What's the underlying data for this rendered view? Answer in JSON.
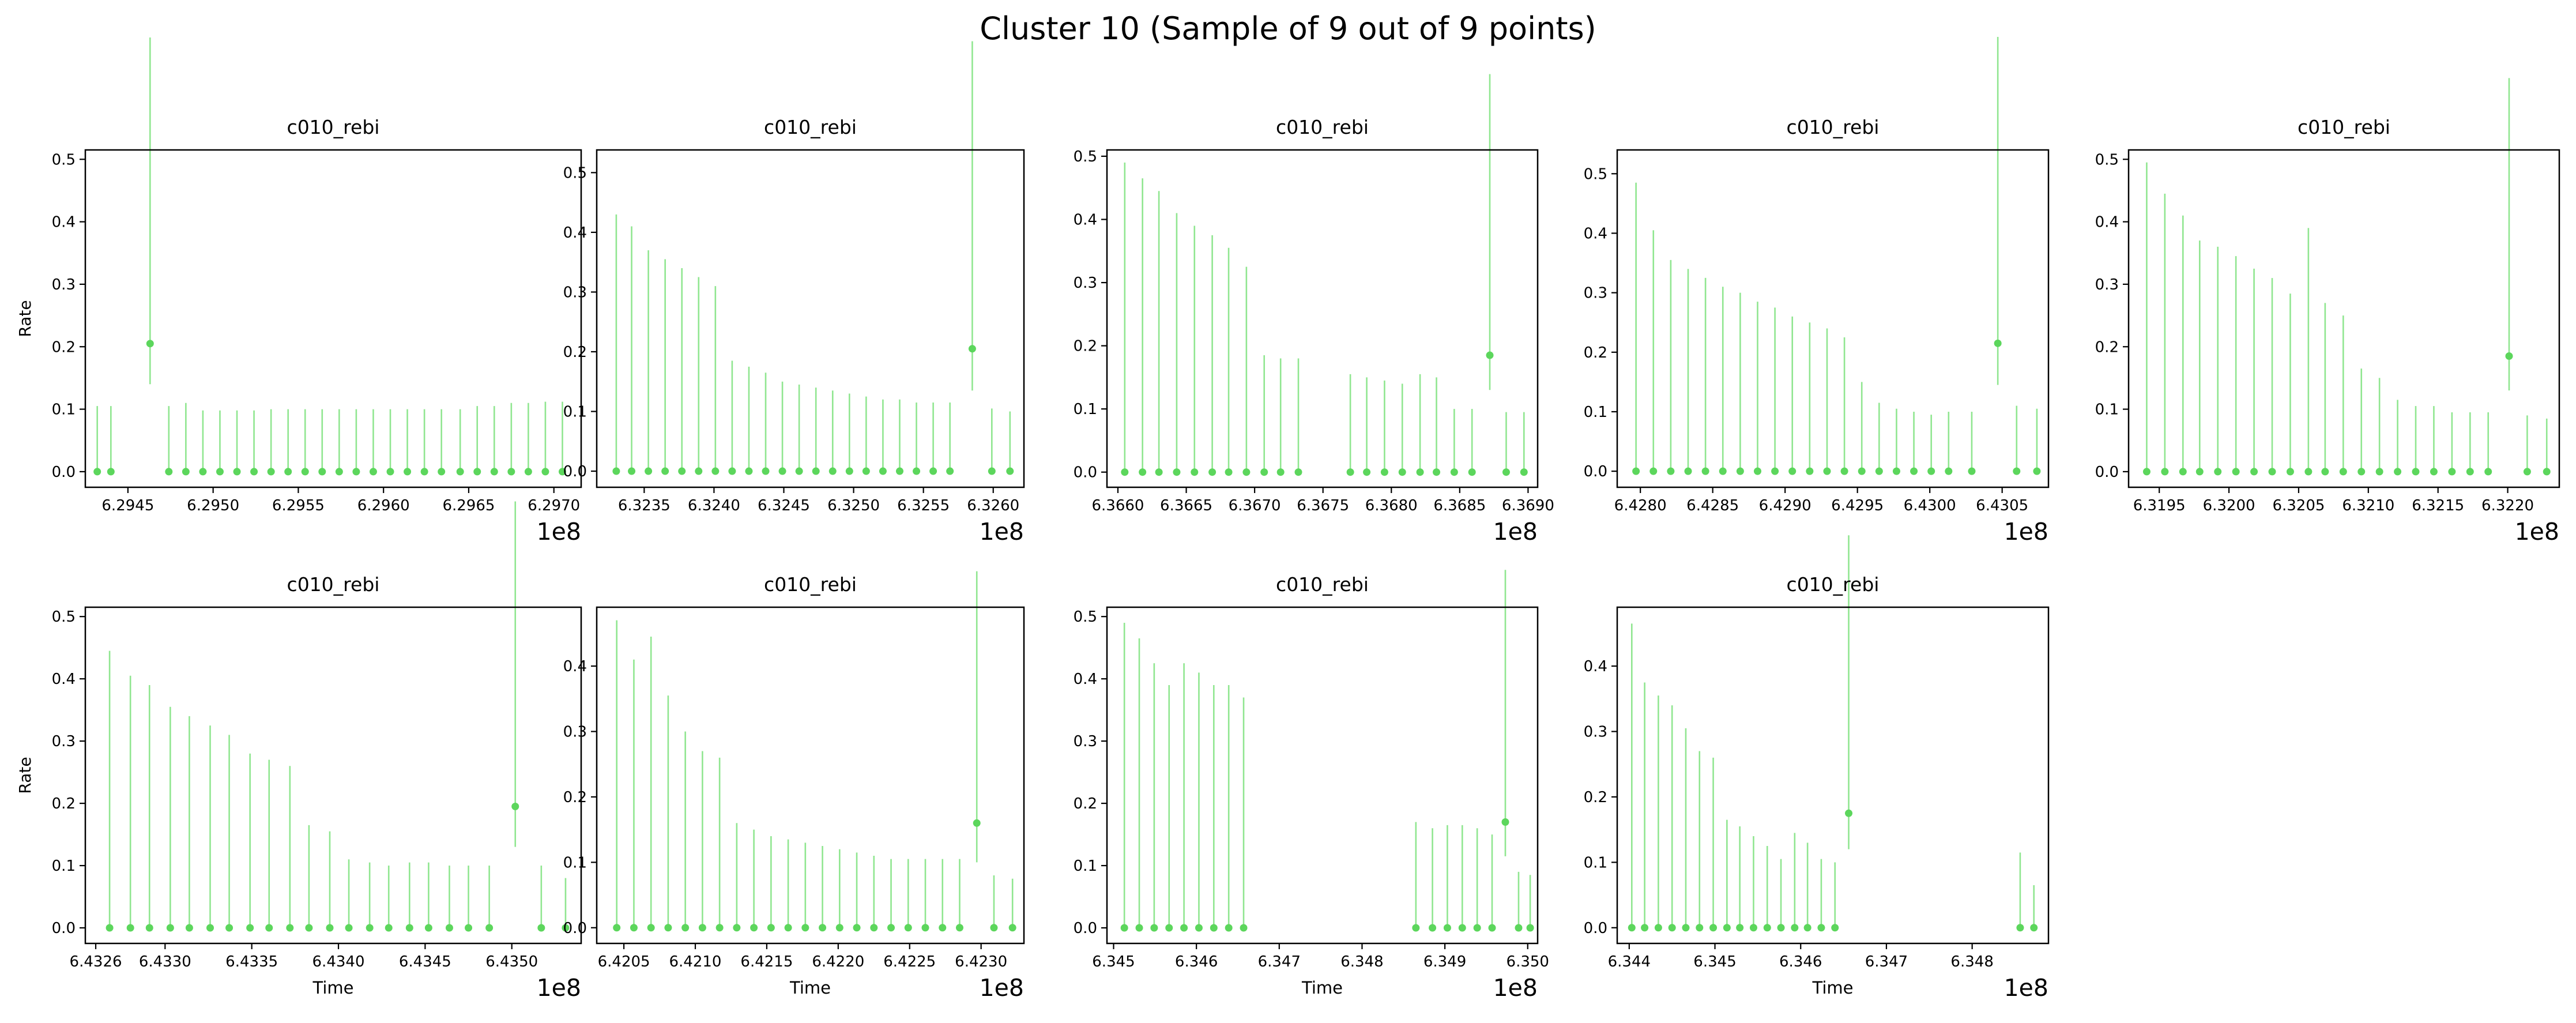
{
  "figure": {
    "title": "Cluster 10 (Sample of 9 out of 9 points)",
    "point_color": "#5cd65c",
    "errorbar_color": "#90e690"
  },
  "chart_data": [
    {
      "type": "scatter",
      "title": "c010_rebi",
      "xlabel": "",
      "ylabel": "Rate",
      "offset_text": "1e8",
      "xticks": [
        "6.2945",
        "6.2950",
        "6.2955",
        "6.2960",
        "6.2965",
        "6.2970"
      ],
      "xtick_values": [
        6.2945,
        6.295,
        6.2955,
        6.296,
        6.2965,
        6.297
      ],
      "xlim": [
        6.29425,
        6.29716
      ],
      "yticks": [
        "0.0",
        "0.1",
        "0.2",
        "0.3",
        "0.4",
        "0.5"
      ],
      "ytick_values": [
        0,
        0.1,
        0.2,
        0.3,
        0.4,
        0.5
      ],
      "ylim": [
        -0.025,
        0.515
      ],
      "x": [
        6.29432,
        6.2944,
        6.29463,
        6.29474,
        6.29484,
        6.29494,
        6.29504,
        6.29514,
        6.29524,
        6.29534,
        6.29544,
        6.29554,
        6.29564,
        6.29574,
        6.29584,
        6.29594,
        6.29604,
        6.29614,
        6.29624,
        6.29634,
        6.29645,
        6.29655,
        6.29665,
        6.29675,
        6.29685,
        6.29695,
        6.29705
      ],
      "y": [
        0,
        0,
        0.205,
        0,
        0,
        0,
        0,
        0,
        0,
        0,
        0,
        0,
        0,
        0,
        0,
        0,
        0,
        0,
        0,
        0,
        0,
        0,
        0,
        0,
        0,
        0,
        0
      ],
      "yerr_low": [
        0,
        0,
        0.065,
        0,
        0,
        0,
        0,
        0,
        0,
        0,
        0,
        0,
        0,
        0,
        0,
        0,
        0,
        0,
        0,
        0,
        0,
        0,
        0,
        0,
        0,
        0,
        0
      ],
      "yerr_high": [
        0.105,
        0.105,
        0.49,
        0.105,
        0.11,
        0.098,
        0.098,
        0.098,
        0.098,
        0.1,
        0.1,
        0.1,
        0.1,
        0.1,
        0.1,
        0.1,
        0.1,
        0.1,
        0.1,
        0.1,
        0.1,
        0.105,
        0.105,
        0.11,
        0.11,
        0.112,
        0.112
      ]
    },
    {
      "type": "scatter",
      "title": "c010_rebi",
      "xlabel": "",
      "ylabel": "",
      "offset_text": "1e8",
      "xticks": [
        "6.3235",
        "6.3240",
        "6.3245",
        "6.3250",
        "6.3255",
        "6.3260"
      ],
      "xtick_values": [
        6.3235,
        6.324,
        6.3245,
        6.325,
        6.3255,
        6.326
      ],
      "xlim": [
        6.32316,
        6.32622
      ],
      "yticks": [
        "0.0",
        "0.1",
        "0.2",
        "0.3",
        "0.4",
        "0.5"
      ],
      "ytick_values": [
        0,
        0.1,
        0.2,
        0.3,
        0.4,
        0.5
      ],
      "ylim": [
        -0.027,
        0.538
      ],
      "x": [
        6.3233,
        6.32341,
        6.32353,
        6.32365,
        6.32377,
        6.32389,
        6.32401,
        6.32413,
        6.32425,
        6.32437,
        6.32449,
        6.32461,
        6.32473,
        6.32485,
        6.32497,
        6.32509,
        6.32521,
        6.32533,
        6.32545,
        6.32557,
        6.32569,
        6.32585,
        6.32599,
        6.32612
      ],
      "y": [
        0,
        0,
        0,
        0,
        0,
        0,
        0,
        0,
        0,
        0,
        0,
        0,
        0,
        0,
        0,
        0,
        0,
        0,
        0,
        0,
        0,
        0.205,
        0,
        0
      ],
      "yerr_low": [
        0,
        0,
        0,
        0,
        0,
        0,
        0,
        0,
        0,
        0,
        0,
        0,
        0,
        0,
        0,
        0,
        0,
        0,
        0,
        0,
        0,
        0.07,
        0,
        0
      ],
      "yerr_high": [
        0.43,
        0.41,
        0.37,
        0.355,
        0.34,
        0.325,
        0.31,
        0.185,
        0.175,
        0.165,
        0.15,
        0.145,
        0.14,
        0.135,
        0.13,
        0.125,
        0.12,
        0.12,
        0.115,
        0.115,
        0.115,
        0.515,
        0.105,
        0.1
      ]
    },
    {
      "type": "scatter",
      "title": "c010_rebi",
      "xlabel": "",
      "ylabel": "",
      "offset_text": "1e8",
      "xticks": [
        "6.3660",
        "6.3665",
        "6.3670",
        "6.3675",
        "6.3680",
        "6.3685",
        "6.3690"
      ],
      "xtick_values": [
        6.366,
        6.3665,
        6.367,
        6.3675,
        6.368,
        6.3685,
        6.369
      ],
      "xlim": [
        6.36592,
        6.36907
      ],
      "yticks": [
        "0.0",
        "0.1",
        "0.2",
        "0.3",
        "0.4",
        "0.5"
      ],
      "ytick_values": [
        0,
        0.1,
        0.2,
        0.3,
        0.4,
        0.5
      ],
      "ylim": [
        -0.024,
        0.51
      ],
      "x": [
        6.36605,
        6.36618,
        6.3663,
        6.36643,
        6.36656,
        6.36669,
        6.36681,
        6.36694,
        6.36707,
        6.36719,
        6.36732,
        6.3677,
        6.36782,
        6.36795,
        6.36808,
        6.36821,
        6.36833,
        6.36846,
        6.36859,
        6.36872,
        6.36884,
        6.36897
      ],
      "y": [
        0,
        0,
        0,
        0,
        0,
        0,
        0,
        0,
        0,
        0,
        0,
        0,
        0,
        0,
        0,
        0,
        0,
        0,
        0,
        0.185,
        0,
        0
      ],
      "yerr_low": [
        0,
        0,
        0,
        0,
        0,
        0,
        0,
        0,
        0,
        0,
        0,
        0,
        0,
        0,
        0,
        0,
        0,
        0,
        0,
        0.055,
        0,
        0
      ],
      "yerr_high": [
        0.49,
        0.465,
        0.445,
        0.41,
        0.39,
        0.375,
        0.355,
        0.325,
        0.185,
        0.18,
        0.18,
        0.155,
        0.15,
        0.145,
        0.14,
        0.155,
        0.15,
        0.1,
        0.1,
        0.445,
        0.095,
        0.095
      ]
    },
    {
      "type": "scatter",
      "title": "c010_rebi",
      "xlabel": "",
      "ylabel": "",
      "offset_text": "1e8",
      "xticks": [
        "6.4280",
        "6.4285",
        "6.4290",
        "6.4295",
        "6.4300",
        "6.4305"
      ],
      "xtick_values": [
        6.428,
        6.4285,
        6.429,
        6.4295,
        6.43,
        6.4305
      ],
      "xlim": [
        6.42784,
        6.43082
      ],
      "yticks": [
        "0.0",
        "0.1",
        "0.2",
        "0.3",
        "0.4",
        "0.5"
      ],
      "ytick_values": [
        0,
        0.1,
        0.2,
        0.3,
        0.4,
        0.5
      ],
      "ylim": [
        -0.027,
        0.54
      ],
      "x": [
        6.42797,
        6.42809,
        6.42821,
        6.42833,
        6.42845,
        6.42857,
        6.42869,
        6.42881,
        6.42893,
        6.42905,
        6.42917,
        6.42929,
        6.42941,
        6.42953,
        6.42965,
        6.42977,
        6.42989,
        6.43001,
        6.43013,
        6.43029,
        6.43047,
        6.4306,
        6.43074
      ],
      "y": [
        0,
        0,
        0,
        0,
        0,
        0,
        0,
        0,
        0,
        0,
        0,
        0,
        0,
        0,
        0,
        0,
        0,
        0,
        0,
        0,
        0.215,
        0,
        0
      ],
      "yerr_low": [
        0,
        0,
        0,
        0,
        0,
        0,
        0,
        0,
        0,
        0,
        0,
        0,
        0,
        0,
        0,
        0,
        0,
        0,
        0,
        0,
        0.07,
        0,
        0
      ],
      "yerr_high": [
        0.485,
        0.405,
        0.355,
        0.34,
        0.325,
        0.31,
        0.3,
        0.285,
        0.275,
        0.26,
        0.25,
        0.24,
        0.225,
        0.15,
        0.115,
        0.105,
        0.1,
        0.095,
        0.1,
        0.1,
        0.515,
        0.11,
        0.105
      ]
    },
    {
      "type": "scatter",
      "title": "c010_rebi",
      "xlabel": "",
      "ylabel": "",
      "offset_text": "1e8",
      "xticks": [
        "6.3195",
        "6.3200",
        "6.3205",
        "6.3210",
        "6.3215",
        "6.3220"
      ],
      "xtick_values": [
        6.3195,
        6.32,
        6.3205,
        6.321,
        6.3215,
        6.322
      ],
      "xlim": [
        6.31928,
        6.32237
      ],
      "yticks": [
        "0.0",
        "0.1",
        "0.2",
        "0.3",
        "0.4",
        "0.5"
      ],
      "ytick_values": [
        0,
        0.1,
        0.2,
        0.3,
        0.4,
        0.5
      ],
      "ylim": [
        -0.025,
        0.515
      ],
      "x": [
        6.31941,
        6.31954,
        6.31967,
        6.31979,
        6.31992,
        6.32005,
        6.32018,
        6.32031,
        6.32044,
        6.32057,
        6.32069,
        6.32082,
        6.32095,
        6.32108,
        6.32121,
        6.32134,
        6.32147,
        6.3216,
        6.32173,
        6.32186,
        6.32201,
        6.32214,
        6.32228
      ],
      "y": [
        0,
        0,
        0,
        0,
        0,
        0,
        0,
        0,
        0,
        0,
        0,
        0,
        0,
        0,
        0,
        0,
        0,
        0,
        0,
        0,
        0.185,
        0,
        0
      ],
      "yerr_low": [
        0,
        0,
        0,
        0,
        0,
        0,
        0,
        0,
        0,
        0,
        0,
        0,
        0,
        0,
        0,
        0,
        0,
        0,
        0,
        0,
        0.055,
        0,
        0
      ],
      "yerr_high": [
        0.495,
        0.445,
        0.41,
        0.37,
        0.36,
        0.345,
        0.325,
        0.31,
        0.285,
        0.39,
        0.27,
        0.25,
        0.165,
        0.15,
        0.115,
        0.105,
        0.105,
        0.095,
        0.095,
        0.095,
        0.445,
        0.09,
        0.085
      ]
    },
    {
      "type": "scatter",
      "title": "c010_rebi",
      "xlabel": "Time",
      "ylabel": "Rate",
      "offset_text": "1e8",
      "xticks": [
        "6.4326",
        "6.4330",
        "6.4335",
        "6.4340",
        "6.4345",
        "6.4350"
      ],
      "xtick_values": [
        6.4326,
        6.433,
        6.4335,
        6.434,
        6.4345,
        6.435
      ],
      "xlim": [
        6.43254,
        6.4354
      ],
      "yticks": [
        "0.0",
        "0.1",
        "0.2",
        "0.3",
        "0.4",
        "0.5"
      ],
      "ytick_values": [
        0,
        0.1,
        0.2,
        0.3,
        0.4,
        0.5
      ],
      "ylim": [
        -0.025,
        0.515
      ],
      "x": [
        6.43268,
        6.4328,
        6.43291,
        6.43303,
        6.43314,
        6.43326,
        6.43337,
        6.43349,
        6.4336,
        6.43372,
        6.43383,
        6.43395,
        6.43406,
        6.43418,
        6.43429,
        6.43441,
        6.43452,
        6.43464,
        6.43475,
        6.43487,
        6.43502,
        6.43517,
        6.43531
      ],
      "y": [
        0,
        0,
        0,
        0,
        0,
        0,
        0,
        0,
        0,
        0,
        0,
        0,
        0,
        0,
        0,
        0,
        0,
        0,
        0,
        0,
        0.195,
        0,
        0
      ],
      "yerr_low": [
        0,
        0,
        0,
        0,
        0,
        0,
        0,
        0,
        0,
        0,
        0,
        0,
        0,
        0,
        0,
        0,
        0,
        0,
        0,
        0,
        0.065,
        0,
        0
      ],
      "yerr_high": [
        0.445,
        0.405,
        0.39,
        0.355,
        0.34,
        0.325,
        0.31,
        0.28,
        0.27,
        0.26,
        0.165,
        0.155,
        0.11,
        0.105,
        0.1,
        0.105,
        0.105,
        0.1,
        0.1,
        0.1,
        0.49,
        0.1,
        0.08
      ]
    },
    {
      "type": "scatter",
      "title": "c010_rebi",
      "xlabel": "Time",
      "ylabel": "",
      "offset_text": "1e8",
      "xticks": [
        "6.4205",
        "6.4210",
        "6.4215",
        "6.4220",
        "6.4225",
        "6.4230"
      ],
      "xtick_values": [
        6.4205,
        6.421,
        6.4215,
        6.422,
        6.4225,
        6.423
      ],
      "xlim": [
        6.42031,
        6.4233
      ],
      "yticks": [
        "0.0",
        "0.1",
        "0.2",
        "0.3",
        "0.4"
      ],
      "ytick_values": [
        0,
        0.1,
        0.2,
        0.3,
        0.4
      ],
      "ylim": [
        -0.024,
        0.49
      ],
      "x": [
        6.42045,
        6.42057,
        6.42069,
        6.42081,
        6.42093,
        6.42105,
        6.42117,
        6.42129,
        6.42141,
        6.42153,
        6.42165,
        6.42177,
        6.42189,
        6.42201,
        6.42213,
        6.42225,
        6.42237,
        6.42249,
        6.42261,
        6.42273,
        6.42285,
        6.42297,
        6.42309,
        6.42322
      ],
      "y": [
        0,
        0,
        0,
        0,
        0,
        0,
        0,
        0,
        0,
        0,
        0,
        0,
        0,
        0,
        0,
        0,
        0,
        0,
        0,
        0,
        0,
        0.16,
        0,
        0
      ],
      "yerr_low": [
        0,
        0,
        0,
        0,
        0,
        0,
        0,
        0,
        0,
        0,
        0,
        0,
        0,
        0,
        0,
        0,
        0,
        0,
        0,
        0,
        0,
        0.06,
        0,
        0
      ],
      "yerr_high": [
        0.47,
        0.41,
        0.445,
        0.355,
        0.3,
        0.27,
        0.26,
        0.16,
        0.15,
        0.14,
        0.135,
        0.13,
        0.125,
        0.12,
        0.115,
        0.11,
        0.105,
        0.105,
        0.105,
        0.105,
        0.105,
        0.385,
        0.08,
        0.075
      ]
    },
    {
      "type": "scatter",
      "title": "c010_rebi",
      "xlabel": "Time",
      "ylabel": "",
      "offset_text": "1e8",
      "xticks": [
        "6.345",
        "6.346",
        "6.347",
        "6.348",
        "6.349",
        "6.350"
      ],
      "xtick_values": [
        6.345,
        6.346,
        6.347,
        6.348,
        6.349,
        6.35
      ],
      "xlim": [
        6.34492,
        6.35012
      ],
      "yticks": [
        "0.0",
        "0.1",
        "0.2",
        "0.3",
        "0.4",
        "0.5"
      ],
      "ytick_values": [
        0,
        0.1,
        0.2,
        0.3,
        0.4,
        0.5
      ],
      "ylim": [
        -0.025,
        0.515
      ],
      "x": [
        6.34513,
        6.34531,
        6.34549,
        6.34567,
        6.34585,
        6.34603,
        6.34621,
        6.34639,
        6.34657,
        6.34865,
        6.34885,
        6.34903,
        6.34921,
        6.34939,
        6.34957,
        6.34973,
        6.34989,
        6.35003
      ],
      "y": [
        0,
        0,
        0,
        0,
        0,
        0,
        0,
        0,
        0,
        0,
        0,
        0,
        0,
        0,
        0,
        0.17,
        0,
        0
      ],
      "yerr_low": [
        0,
        0,
        0,
        0,
        0,
        0,
        0,
        0,
        0,
        0,
        0,
        0,
        0,
        0,
        0,
        0.055,
        0,
        0
      ],
      "yerr_high": [
        0.49,
        0.465,
        0.425,
        0.39,
        0.425,
        0.41,
        0.39,
        0.39,
        0.37,
        0.17,
        0.16,
        0.165,
        0.165,
        0.16,
        0.15,
        0.405,
        0.09,
        0.085
      ]
    },
    {
      "type": "scatter",
      "title": "c010_rebi",
      "xlabel": "Time",
      "ylabel": "",
      "offset_text": "1e8",
      "xticks": [
        "6.344",
        "6.345",
        "6.346",
        "6.347",
        "6.348"
      ],
      "xtick_values": [
        6.344,
        6.345,
        6.346,
        6.347,
        6.348
      ],
      "xlim": [
        6.34386,
        6.34889
      ],
      "yticks": [
        "0.0",
        "0.1",
        "0.2",
        "0.3",
        "0.4"
      ],
      "ytick_values": [
        0,
        0.1,
        0.2,
        0.3,
        0.4
      ],
      "ylim": [
        -0.024,
        0.49
      ],
      "x": [
        6.34403,
        6.34418,
        6.34434,
        6.3445,
        6.34466,
        6.34482,
        6.34498,
        6.34514,
        6.34529,
        6.34545,
        6.34561,
        6.34577,
        6.34593,
        6.34608,
        6.34624,
        6.3464,
        6.34656,
        6.34856,
        6.34872
      ],
      "y": [
        0,
        0,
        0,
        0,
        0,
        0,
        0,
        0,
        0,
        0,
        0,
        0,
        0,
        0,
        0,
        0,
        0.175,
        0,
        0
      ],
      "yerr_low": [
        0,
        0,
        0,
        0,
        0,
        0,
        0,
        0,
        0,
        0,
        0,
        0,
        0,
        0,
        0,
        0,
        0.055,
        0,
        0
      ],
      "yerr_high": [
        0.465,
        0.375,
        0.355,
        0.34,
        0.305,
        0.27,
        0.26,
        0.165,
        0.155,
        0.14,
        0.125,
        0.105,
        0.145,
        0.13,
        0.105,
        0.1,
        0.425,
        0.115,
        0.065
      ]
    }
  ]
}
